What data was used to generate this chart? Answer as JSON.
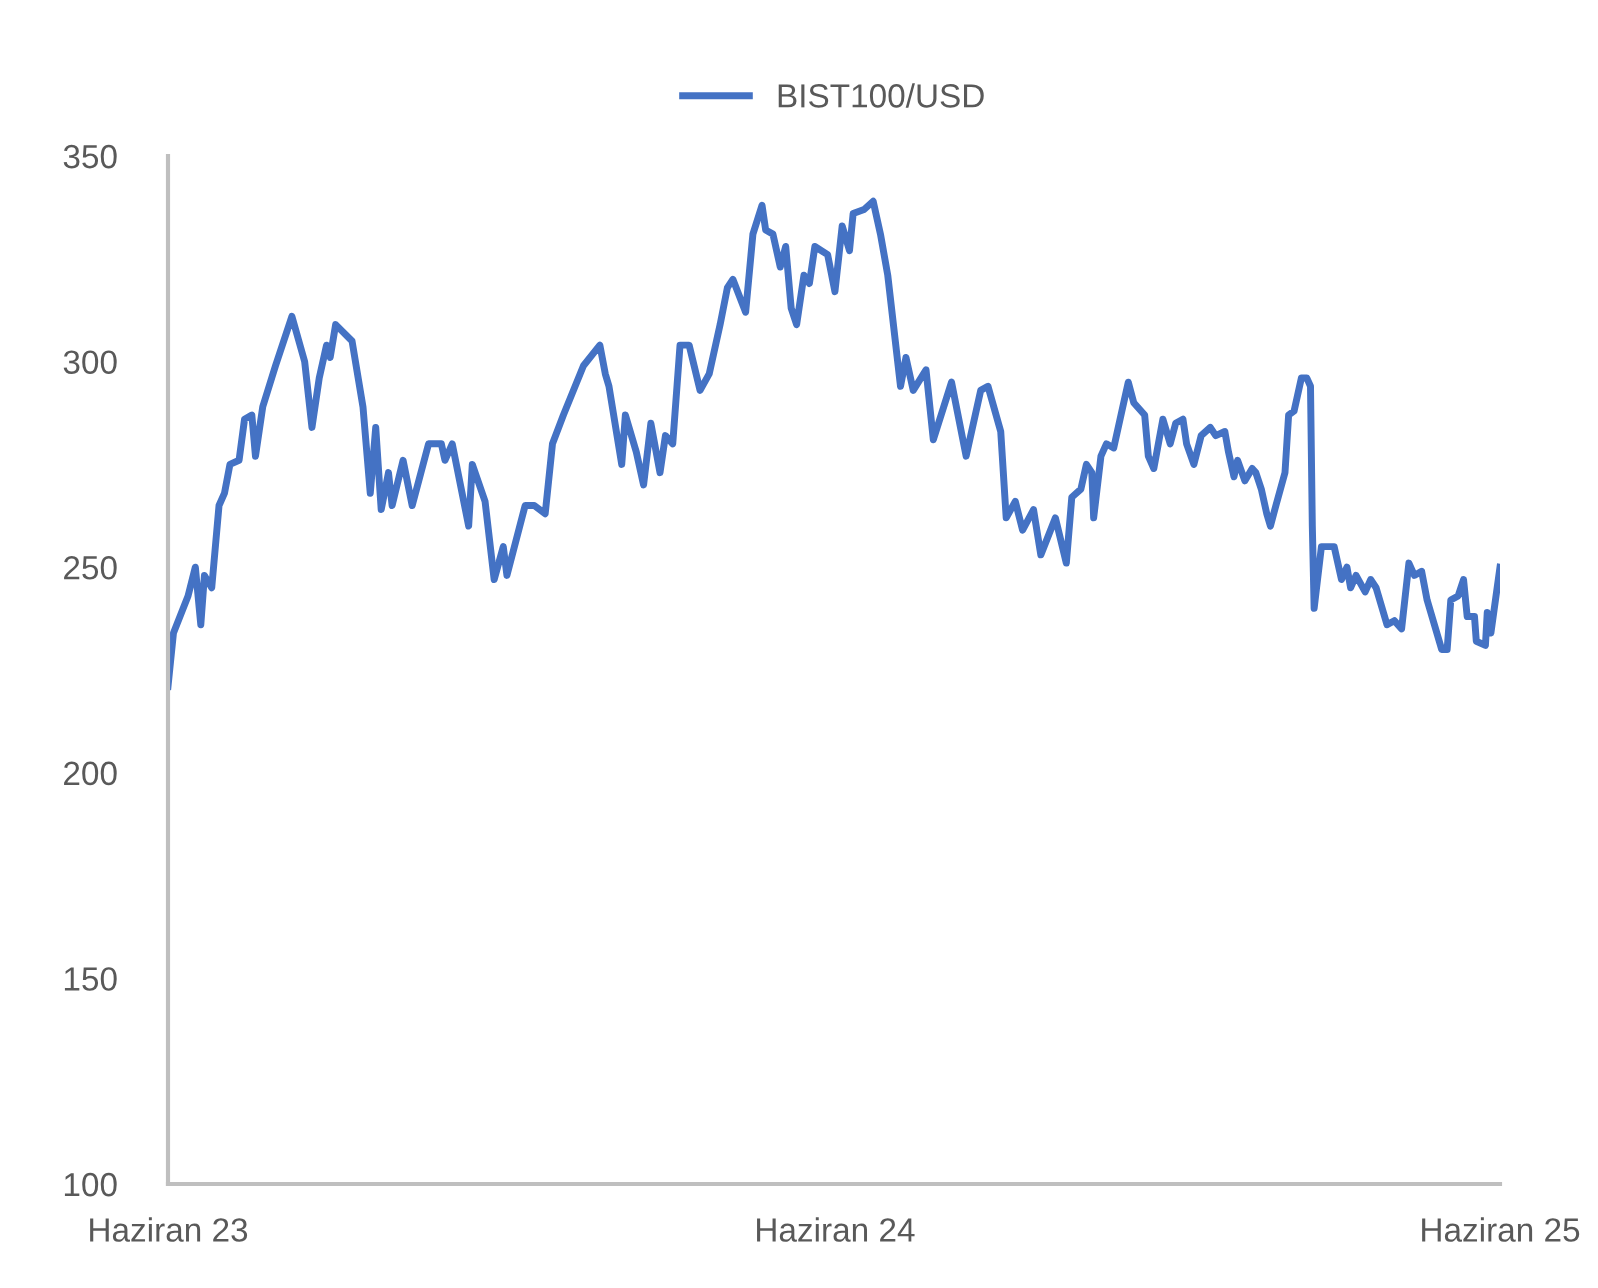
{
  "chart_data": {
    "type": "line",
    "x": [
      "2023-06-01",
      "2023-06-04",
      "2023-06-12",
      "2023-06-16",
      "2023-06-19",
      "2023-06-21",
      "2023-06-25",
      "2023-06-29",
      "2023-07-02",
      "2023-07-05",
      "2023-07-10",
      "2023-07-13",
      "2023-07-17",
      "2023-07-19",
      "2023-07-23",
      "2023-07-30",
      "2023-08-08",
      "2023-08-15",
      "2023-08-19",
      "2023-08-23",
      "2023-08-27",
      "2023-08-29",
      "2023-09-01",
      "2023-09-10",
      "2023-09-16",
      "2023-09-20",
      "2023-09-23",
      "2023-09-26",
      "2023-09-30",
      "2023-10-02",
      "2023-10-08",
      "2023-10-13",
      "2023-10-22",
      "2023-10-29",
      "2023-10-31",
      "2023-11-04",
      "2023-11-13",
      "2023-11-15",
      "2023-11-22",
      "2023-11-27",
      "2023-12-02",
      "2023-12-04",
      "2023-12-14",
      "2023-12-19",
      "2023-12-25",
      "2023-12-29",
      "2024-01-04",
      "2024-01-15",
      "2024-01-24",
      "2024-01-27",
      "2024-01-29",
      "2024-02-05",
      "2024-02-07",
      "2024-02-13",
      "2024-02-17",
      "2024-02-21",
      "2024-02-26",
      "2024-02-29",
      "2024-03-04",
      "2024-03-08",
      "2024-03-13",
      "2024-03-19",
      "2024-03-24",
      "2024-03-30",
      "2024-04-03",
      "2024-04-06",
      "2024-04-13",
      "2024-04-17",
      "2024-04-22",
      "2024-04-24",
      "2024-04-28",
      "2024-05-02",
      "2024-05-05",
      "2024-05-08",
      "2024-05-11",
      "2024-05-15",
      "2024-05-18",
      "2024-05-21",
      "2024-05-28",
      "2024-06-01",
      "2024-06-05",
      "2024-06-09",
      "2024-06-11",
      "2024-06-17",
      "2024-06-22",
      "2024-06-26",
      "2024-06-30",
      "2024-07-07",
      "2024-07-10",
      "2024-07-14",
      "2024-07-21",
      "2024-07-25",
      "2024-08-04",
      "2024-08-12",
      "2024-08-20",
      "2024-08-24",
      "2024-08-31",
      "2024-09-03",
      "2024-09-08",
      "2024-09-12",
      "2024-09-18",
      "2024-09-22",
      "2024-09-30",
      "2024-10-06",
      "2024-10-09",
      "2024-10-14",
      "2024-10-17",
      "2024-10-20",
      "2024-10-21",
      "2024-10-25",
      "2024-10-28",
      "2024-11-01",
      "2024-11-06",
      "2024-11-09",
      "2024-11-12",
      "2024-11-18",
      "2024-11-20",
      "2024-11-23",
      "2024-11-28",
      "2024-12-02",
      "2024-12-05",
      "2024-12-09",
      "2024-12-11",
      "2024-12-15",
      "2024-12-19",
      "2024-12-24",
      "2024-12-27",
      "2025-01-01",
      "2025-01-03",
      "2025-01-06",
      "2025-01-08",
      "2025-01-12",
      "2025-01-16",
      "2025-01-18",
      "2025-01-21",
      "2025-01-24",
      "2025-01-26",
      "2025-01-29",
      "2025-02-03",
      "2025-02-05",
      "2025-02-08",
      "2025-02-12",
      "2025-02-15",
      "2025-02-17",
      "2025-02-18",
      "2025-02-19",
      "2025-02-23",
      "2025-03-02",
      "2025-03-06",
      "2025-03-09",
      "2025-03-11",
      "2025-03-14",
      "2025-03-19",
      "2025-03-22",
      "2025-03-25",
      "2025-03-31",
      "2025-04-04",
      "2025-04-08",
      "2025-04-12",
      "2025-04-15",
      "2025-04-19",
      "2025-04-22",
      "2025-04-26",
      "2025-04-30",
      "2025-05-03",
      "2025-05-05",
      "2025-05-09",
      "2025-05-12",
      "2025-05-14",
      "2025-05-18",
      "2025-05-19",
      "2025-05-24",
      "2025-05-25",
      "2025-05-27",
      "2025-06-01"
    ],
    "series": [
      {
        "name": "BIST100/USD",
        "color": "#4472c4",
        "values": [
          221,
          234,
          243,
          250,
          236,
          248,
          245,
          265,
          268,
          275,
          276,
          286,
          287,
          277,
          289,
          299,
          311,
          300,
          284,
          296,
          304,
          301,
          309,
          305,
          289,
          268,
          284,
          264,
          273,
          265,
          276,
          265,
          280,
          280,
          276,
          280,
          260,
          275,
          266,
          247,
          255,
          248,
          265,
          265,
          263,
          280,
          287,
          299,
          304,
          297,
          294,
          275,
          287,
          278,
          270,
          285,
          273,
          282,
          280,
          304,
          304,
          293,
          297,
          309,
          318,
          320,
          312,
          331,
          338,
          332,
          331,
          323,
          328,
          313,
          309,
          321,
          319,
          328,
          326,
          317,
          333,
          327,
          336,
          337,
          339,
          331,
          321,
          294,
          301,
          293,
          298,
          281,
          295,
          277,
          293,
          294,
          283,
          262,
          266,
          259,
          264,
          253,
          262,
          251,
          267,
          269,
          275,
          273,
          262,
          277,
          280,
          279,
          289,
          295,
          290,
          287,
          277,
          274,
          286,
          280,
          285,
          286,
          280,
          275,
          282,
          284,
          282,
          283,
          278,
          272,
          276,
          271,
          274,
          273,
          269,
          263,
          260,
          265,
          273,
          287,
          288,
          296,
          296,
          294,
          260,
          240,
          255,
          255,
          247,
          250,
          245,
          248,
          244,
          247,
          245,
          236,
          237,
          235,
          251,
          248,
          249,
          242,
          236,
          230,
          230,
          242,
          243,
          247,
          238,
          238,
          232,
          231,
          239,
          234,
          250
        ]
      }
    ],
    "xlim": [
      "2023-06-01",
      "2025-06-01"
    ],
    "xticks": [
      {
        "value": "2023-06-01",
        "label": "Haziran 23"
      },
      {
        "value": "2024-06-01",
        "label": "Haziran 24"
      },
      {
        "value": "2025-06-01",
        "label": "Haziran 25"
      }
    ],
    "ylim": [
      100,
      350
    ],
    "yticks": [
      100,
      150,
      200,
      250,
      300,
      350
    ],
    "grid": false,
    "legend": "top",
    "marker": "none",
    "line_style": "solid"
  }
}
